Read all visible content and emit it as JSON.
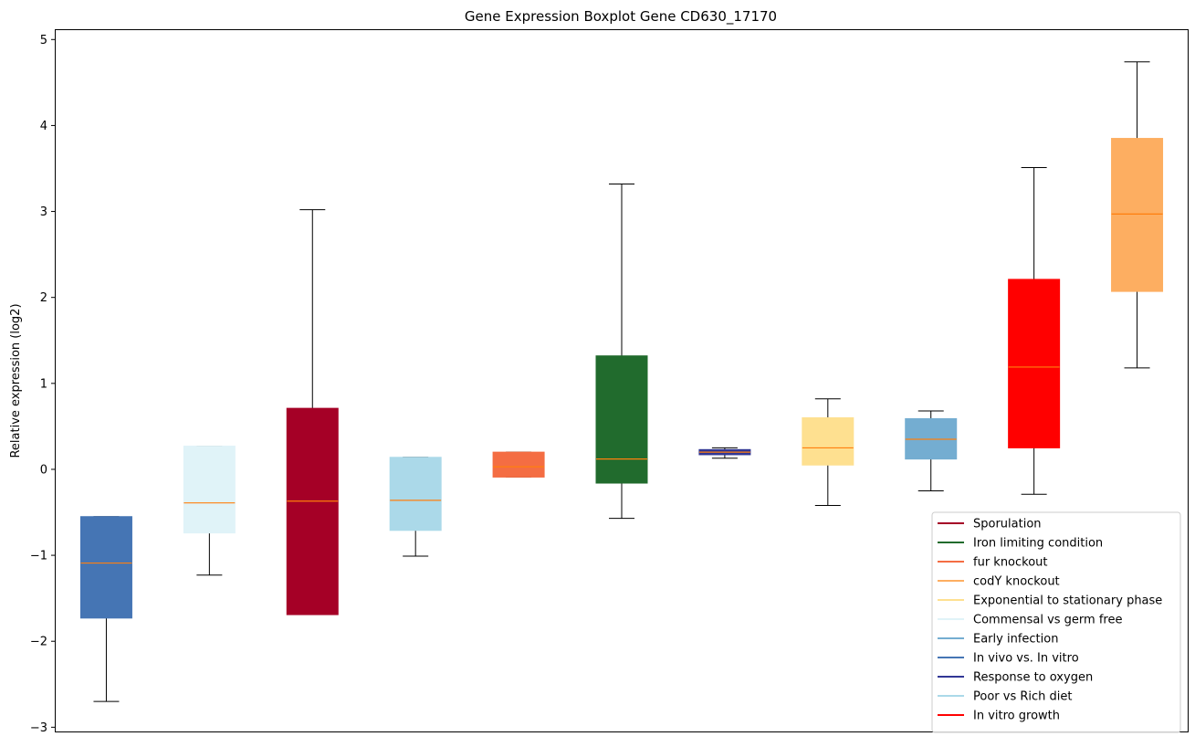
{
  "chart_data": {
    "type": "boxplot",
    "title": "Gene Expression Boxplot Gene CD630_17170",
    "xlabel": "",
    "ylabel": "Relative expression (log2)",
    "ylim": [
      -3.06,
      5.12
    ],
    "yticks": [
      -3,
      -2,
      -1,
      0,
      1,
      2,
      3,
      4,
      5
    ],
    "ytick_labels": [
      "−3",
      "−2",
      "−1",
      "0",
      "1",
      "2",
      "3",
      "4",
      "5"
    ],
    "grid": false,
    "legend_position": "bottom-right",
    "median_color": "#ff7f0e",
    "boxes": [
      {
        "name": "In vivo vs. In vitro",
        "color": "#4575b4",
        "whislo": -2.7,
        "q1": -1.73,
        "med": -1.09,
        "q3": -0.55,
        "whishi": -0.55
      },
      {
        "name": "Commensal vs germ free",
        "color": "#e0f3f8",
        "whislo": -1.23,
        "q1": -0.74,
        "med": -0.39,
        "q3": 0.27,
        "whishi": 0.27
      },
      {
        "name": "Sporulation",
        "color": "#a50026",
        "whislo": -1.69,
        "q1": -1.69,
        "med": -0.37,
        "q3": 0.71,
        "whishi": 3.02
      },
      {
        "name": "Poor vs Rich diet",
        "color": "#abd9e9",
        "whislo": -1.01,
        "q1": -0.71,
        "med": -0.36,
        "q3": 0.14,
        "whishi": 0.14
      },
      {
        "name": "fur knockout",
        "color": "#f46d43",
        "whislo": -0.09,
        "q1": -0.09,
        "med": 0.03,
        "q3": 0.2,
        "whishi": 0.2
      },
      {
        "name": "Iron limiting condition",
        "color": "#216b2d",
        "whislo": -0.57,
        "q1": -0.16,
        "med": 0.12,
        "q3": 1.32,
        "whishi": 3.32
      },
      {
        "name": "Response to oxygen",
        "color": "#313695",
        "whislo": 0.13,
        "q1": 0.17,
        "med": 0.2,
        "q3": 0.23,
        "whishi": 0.25
      },
      {
        "name": "Exponential to stationary phase",
        "color": "#fee090",
        "whislo": -0.42,
        "q1": 0.05,
        "med": 0.25,
        "q3": 0.6,
        "whishi": 0.82
      },
      {
        "name": "Early infection",
        "color": "#74add1",
        "whislo": -0.25,
        "q1": 0.12,
        "med": 0.35,
        "q3": 0.59,
        "whishi": 0.68
      },
      {
        "name": "In vitro growth",
        "color": "#ff0000",
        "whislo": -0.29,
        "q1": 0.25,
        "med": 1.19,
        "q3": 2.21,
        "whishi": 3.51
      },
      {
        "name": "codY knockout",
        "color": "#fdae61",
        "whislo": 1.18,
        "q1": 2.07,
        "med": 2.97,
        "q3": 3.85,
        "whishi": 4.74
      }
    ],
    "legend": [
      {
        "label": "Sporulation",
        "color": "#a50026"
      },
      {
        "label": "Iron limiting condition",
        "color": "#216b2d"
      },
      {
        "label": "fur knockout",
        "color": "#f46d43"
      },
      {
        "label": "codY knockout",
        "color": "#fdae61"
      },
      {
        "label": "Exponential to stationary phase",
        "color": "#fee090"
      },
      {
        "label": "Commensal vs germ free",
        "color": "#e0f3f8"
      },
      {
        "label": "Early infection",
        "color": "#74add1"
      },
      {
        "label": "In vivo vs. In vitro",
        "color": "#4575b4"
      },
      {
        "label": "Response to oxygen",
        "color": "#313695"
      },
      {
        "label": "Poor vs Rich diet",
        "color": "#abd9e9"
      },
      {
        "label": "In vitro growth",
        "color": "#ff0000"
      }
    ]
  }
}
